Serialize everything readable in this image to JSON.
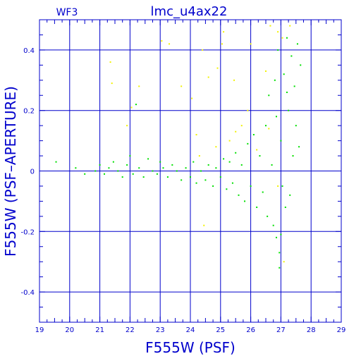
{
  "panel_label": "WF3",
  "chart_data": {
    "type": "scatter",
    "title": "lmc_u4ax22",
    "xlabel": "F555W (PSF)",
    "ylabel": "F555W (PSF–APERTURE)",
    "xlim": [
      19,
      29
    ],
    "ylim": [
      -0.5,
      0.5
    ],
    "x_major_ticks": [
      19,
      20,
      21,
      22,
      23,
      24,
      25,
      26,
      27,
      28,
      29
    ],
    "x_tick_labels": [
      "19",
      "20",
      "21",
      "22",
      "23",
      "24",
      "25",
      "26",
      "27",
      "28",
      "29"
    ],
    "y_major_ticks": [
      -0.4,
      -0.2,
      0,
      0.2,
      0.4
    ],
    "y_tick_labels": [
      "-0.4",
      "-0.2",
      "0",
      "0.2",
      "0.4"
    ],
    "grid": true,
    "colors": {
      "axes": "#0000cc",
      "grid": "#0000cc",
      "primary": "#00e000",
      "secondary": "#f2f200"
    },
    "series": [
      {
        "color": "#00e000",
        "points": [
          [
            19.55,
            0.03
          ],
          [
            20.2,
            0.01
          ],
          [
            20.5,
            -0.01
          ],
          [
            20.85,
            0.0
          ],
          [
            21.0,
            0.02
          ],
          [
            21.15,
            -0.01
          ],
          [
            21.3,
            0.01
          ],
          [
            21.45,
            0.03
          ],
          [
            21.6,
            0.0
          ],
          [
            21.75,
            -0.02
          ],
          [
            21.9,
            0.02
          ],
          [
            22.0,
            0.05
          ],
          [
            22.1,
            -0.01
          ],
          [
            22.2,
            0.22
          ],
          [
            22.3,
            0.01
          ],
          [
            22.45,
            -0.02
          ],
          [
            22.6,
            0.04
          ],
          [
            22.75,
            0.0
          ],
          [
            22.9,
            -0.01
          ],
          [
            23.0,
            0.03
          ],
          [
            23.1,
            0.01
          ],
          [
            23.25,
            -0.02
          ],
          [
            23.4,
            0.02
          ],
          [
            23.55,
            0.0
          ],
          [
            23.7,
            -0.03
          ],
          [
            23.85,
            0.01
          ],
          [
            24.0,
            -0.02
          ],
          [
            24.1,
            0.03
          ],
          [
            24.2,
            -0.04
          ],
          [
            24.35,
            0.0
          ],
          [
            24.5,
            -0.03
          ],
          [
            24.6,
            0.02
          ],
          [
            24.75,
            -0.05
          ],
          [
            24.85,
            0.01
          ],
          [
            25.0,
            -0.02
          ],
          [
            25.1,
            0.04
          ],
          [
            25.2,
            -0.06
          ],
          [
            25.3,
            0.03
          ],
          [
            25.4,
            -0.04
          ],
          [
            25.5,
            0.06
          ],
          [
            25.6,
            -0.08
          ],
          [
            25.7,
            0.02
          ],
          [
            25.8,
            -0.1
          ],
          [
            25.9,
            0.09
          ],
          [
            26.0,
            -0.05
          ],
          [
            26.1,
            0.12
          ],
          [
            26.2,
            -0.12
          ],
          [
            26.3,
            0.05
          ],
          [
            26.4,
            -0.07
          ],
          [
            26.5,
            0.15
          ],
          [
            26.55,
            -0.15
          ],
          [
            26.6,
            0.25
          ],
          [
            26.7,
            0.02
          ],
          [
            26.75,
            -0.18
          ],
          [
            26.8,
            0.3
          ],
          [
            26.85,
            -0.22
          ],
          [
            26.9,
            0.4
          ],
          [
            26.95,
            -0.27
          ],
          [
            27.0,
            0.1
          ],
          [
            27.05,
            -0.05
          ],
          [
            27.1,
            0.32
          ],
          [
            27.15,
            -0.12
          ],
          [
            27.2,
            0.44
          ],
          [
            27.25,
            0.2
          ],
          [
            27.3,
            -0.08
          ],
          [
            27.35,
            0.38
          ],
          [
            27.4,
            0.05
          ],
          [
            27.45,
            0.28
          ],
          [
            27.5,
            0.15
          ],
          [
            27.55,
            0.42
          ],
          [
            27.6,
            0.08
          ],
          [
            27.65,
            0.35
          ],
          [
            26.95,
            -0.32
          ],
          [
            27.0,
            -0.21
          ],
          [
            26.85,
            0.18
          ],
          [
            27.2,
            0.26
          ]
        ]
      },
      {
        "color": "#f2f200",
        "points": [
          [
            21.35,
            0.36
          ],
          [
            21.4,
            0.29
          ],
          [
            21.9,
            0.15
          ],
          [
            22.05,
            0.21
          ],
          [
            22.3,
            0.28
          ],
          [
            23.05,
            0.43
          ],
          [
            23.3,
            0.42
          ],
          [
            23.7,
            0.28
          ],
          [
            24.05,
            0.24
          ],
          [
            24.2,
            0.12
          ],
          [
            24.3,
            0.05
          ],
          [
            24.4,
            0.4
          ],
          [
            24.45,
            -0.18
          ],
          [
            24.6,
            0.31
          ],
          [
            24.85,
            0.08
          ],
          [
            24.9,
            0.34
          ],
          [
            25.05,
            0.42
          ],
          [
            25.1,
            0.46
          ],
          [
            25.3,
            0.1
          ],
          [
            25.45,
            0.3
          ],
          [
            25.5,
            0.13
          ],
          [
            25.7,
            0.15
          ],
          [
            25.9,
            0.2
          ],
          [
            26.0,
            0.42
          ],
          [
            26.2,
            0.07
          ],
          [
            26.5,
            0.33
          ],
          [
            26.65,
            0.48
          ],
          [
            26.9,
            0.46
          ],
          [
            27.05,
            0.44
          ],
          [
            27.3,
            0.48
          ],
          [
            27.4,
            0.05
          ],
          [
            27.1,
            -0.3
          ],
          [
            26.9,
            -0.05
          ],
          [
            26.6,
            0.14
          ]
        ]
      }
    ]
  }
}
